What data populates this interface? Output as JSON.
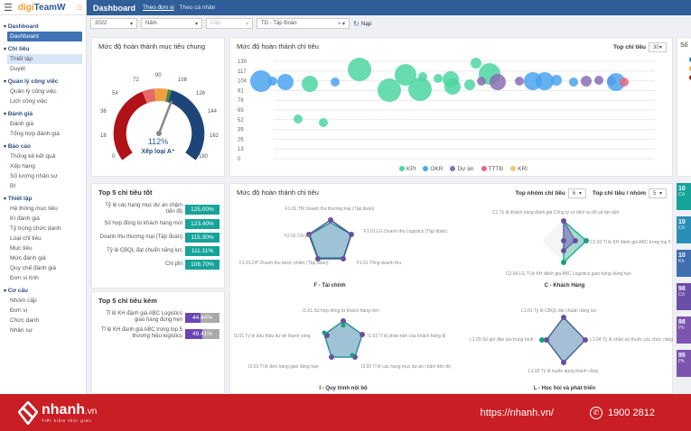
{
  "app": {
    "logo_prefix": "digi",
    "logo_suffix": "TeamW"
  },
  "header": {
    "title": "Dashboard",
    "tabs": [
      "Theo đơn vị",
      "Theo cá nhân"
    ]
  },
  "sidebar": {
    "groups": [
      {
        "label": "Dashboard",
        "items": [
          "Dashboard"
        ]
      },
      {
        "label": "Chỉ tiêu",
        "items": [
          "Thiết lập",
          "Duyệt"
        ]
      },
      {
        "label": "Quản lý công việc",
        "items": [
          "Quản lý công việc",
          "Lịch công việc"
        ]
      },
      {
        "label": "Đánh giá",
        "items": [
          "Đánh giá",
          "Tổng hợp đánh giá"
        ]
      },
      {
        "label": "Báo cáo",
        "items": [
          "Thống kê kết quả",
          "Xếp hạng",
          "Số lượng nhân sự",
          "BI"
        ]
      },
      {
        "label": "Thiết lập",
        "items": [
          "Hệ thống mục tiêu",
          "Kì đánh giá",
          "Tỷ trọng chức danh",
          "Loại chỉ tiêu",
          "Mục tiêu",
          "Mức đánh giá",
          "Quy chế đánh giá",
          "Đơn vị tính"
        ]
      },
      {
        "label": "Cơ cấu",
        "items": [
          "Nhóm cấp",
          "Đơn vị",
          "Chức danh",
          "Nhân sự"
        ]
      }
    ]
  },
  "filters": {
    "year": "2022",
    "period": "Năm",
    "level": "Cấp",
    "unit": "TD - Tập Đoàn",
    "reload": "Nạp"
  },
  "gauge": {
    "title": "Mức độ hoàn thành mục tiêu chung",
    "value": "112%",
    "grade": "Xếp loại A⁺",
    "ticks": [
      "0",
      "18",
      "36",
      "54",
      "72",
      "90",
      "108",
      "126",
      "144",
      "162",
      "180"
    ]
  },
  "bubble": {
    "title": "Mức độ hoàn thành chỉ tiêu",
    "top_label": "Top chỉ tiêu",
    "top_value": "30",
    "legend": [
      {
        "name": "KPI",
        "color": "#4cd6a2"
      },
      {
        "name": "OKR",
        "color": "#4aa3ef"
      },
      {
        "name": "Dự án",
        "color": "#8a6fb5"
      },
      {
        "name": "TTTĐ",
        "color": "#e8687e"
      },
      {
        "name": "KRI",
        "color": "#f3c86f"
      }
    ],
    "y_ticks": [
      "130",
      "117",
      "104",
      "91",
      "78",
      "65",
      "52",
      "39",
      "26",
      "13",
      "0"
    ]
  },
  "chart_data": {
    "type": "scatter",
    "title": "Mức độ hoàn thành chỉ tiêu",
    "ylim": [
      0,
      130
    ],
    "series": [
      {
        "name": "OKR",
        "points": [
          [
            1,
            102
          ],
          [
            2,
            101
          ],
          [
            3,
            100
          ],
          [
            7,
            100
          ],
          [
            16,
            102
          ],
          [
            17,
            102
          ],
          [
            18,
            103
          ],
          [
            19,
            102
          ],
          [
            22,
            102
          ]
        ]
      },
      {
        "name": "KPI",
        "points": [
          [
            4,
            98
          ],
          [
            5,
            48
          ],
          [
            6,
            44
          ],
          [
            8,
            115
          ],
          [
            9,
            88
          ],
          [
            10,
            108
          ],
          [
            11,
            106
          ],
          [
            12,
            120
          ],
          [
            13,
            104
          ],
          [
            14,
            80
          ],
          [
            15,
            122
          ],
          [
            15.5,
            112
          ],
          [
            16,
            98
          ],
          [
            17,
            96
          ]
        ]
      },
      {
        "name": "Dự án",
        "points": [
          [
            13,
            101
          ],
          [
            14,
            101
          ],
          [
            15,
            101
          ],
          [
            17,
            101
          ],
          [
            18,
            102
          ],
          [
            19,
            103
          ],
          [
            20,
            101
          ]
        ]
      },
      {
        "name": "TTTĐ",
        "points": [
          [
            23,
            101
          ]
        ]
      }
    ]
  },
  "top_good": {
    "title": "Top 5 chỉ tiêu tốt",
    "rows": [
      {
        "label": "Tỷ lệ các hạng mục dự án chậm tiến độ",
        "value": "125.00%"
      },
      {
        "label": "Số hợp đồng từ khách hàng mới",
        "value": "123.40%"
      },
      {
        "label": "Doanh thu thương mại (Tập đoàn)",
        "value": "115.30%"
      },
      {
        "label": "Tỷ lệ CBQL đạt chuẩn năng lực",
        "value": "111.11%"
      },
      {
        "label": "Chi phí",
        "value": "108.70%"
      }
    ]
  },
  "top_bad": {
    "title": "Top 5 chỉ tiêu kém",
    "rows": [
      {
        "label": "Tỉ lệ KH đánh giá ABC Logistics giao hàng đúng hẹn",
        "value": "44.44%"
      },
      {
        "label": "Tỉ lệ KH đánh giá ABC trong top 5 thương hiệu logistics",
        "value": "49.41%"
      }
    ]
  },
  "radar": {
    "title": "Mức độ hoàn thành chỉ tiêu",
    "group_label": "Top nhóm chỉ tiêu",
    "group_value": "6",
    "per_label": "Top chỉ tiêu / nhóm",
    "per_value": "5",
    "charts": [
      {
        "name": "F - Tài chính",
        "axes": [
          "F1.01.TM Doanh thu thương mại (Tập đoàn)",
          "F1.01.LG Doanh thu Logistics (Tập đoàn)",
          "F1.01 Tổng doanh thu",
          "F1.01.DP Doanh thu dược phẩm (Tập đoàn)",
          "F2.02 Chi phí"
        ]
      },
      {
        "name": "C - Khách Hàng",
        "axes": [
          "C1 Tỷ lệ khách hàng đánh giá Công ty có dịch vụ tốt và tận tâm",
          "C2.02 Tỉ lệ KH đánh giá ABC trong top 5",
          "C2.04.LG Tỉ lệ KH đánh giá ABC Logistics giao hàng đúng hẹn"
        ]
      },
      {
        "name": "I - Quy trình nội bộ",
        "axes": [
          "I1.01 Số hợp đồng từ khách hàng mới",
          "I1.02 Tỉ lệ phàn nàn của khách hàng đi",
          "I2.05 Tỉ lệ các hạng mục dự án chậm tiến độ",
          "I2.03 Tỉ lệ đơn hàng giao đúng hạn",
          "I2.01 Tỷ lệ đấu thầu dự án thành công"
        ]
      },
      {
        "name": "L - Học hỏi và phát triển",
        "axes": [
          "L1.01 Tỷ lệ CBQL đạt chuẩn năng lực",
          "L1.04 Tỷ lệ nhân sự thuộc các chức năng",
          "L1.02 Tỷ lệ tuyển dụng thành công",
          "L1.03 Số giờ đào tạo trung bình"
        ]
      }
    ]
  },
  "side_card": {
    "title": "Số"
  },
  "kpi_cards": [
    {
      "value": "10",
      "sub": "Cô",
      "color": "#16a39a"
    },
    {
      "value": "10",
      "sub": "Cô",
      "color": "#2a8fb8"
    },
    {
      "value": "10",
      "sub": "Kh",
      "color": "#3f6fb0"
    },
    {
      "value": "98",
      "sub": "Cô",
      "color": "#6a4fa8"
    },
    {
      "value": "98",
      "sub": "Ph",
      "color": "#7b55b0"
    },
    {
      "value": "95",
      "sub": "Ph",
      "color": "#7b55b0"
    }
  ],
  "footer": {
    "brand": "nhanh",
    "brand_suffix": ".vn",
    "tagline": "Tiết kiệm thời gian",
    "url": "https://nhanh.vn/",
    "phone": "1900 2812"
  }
}
